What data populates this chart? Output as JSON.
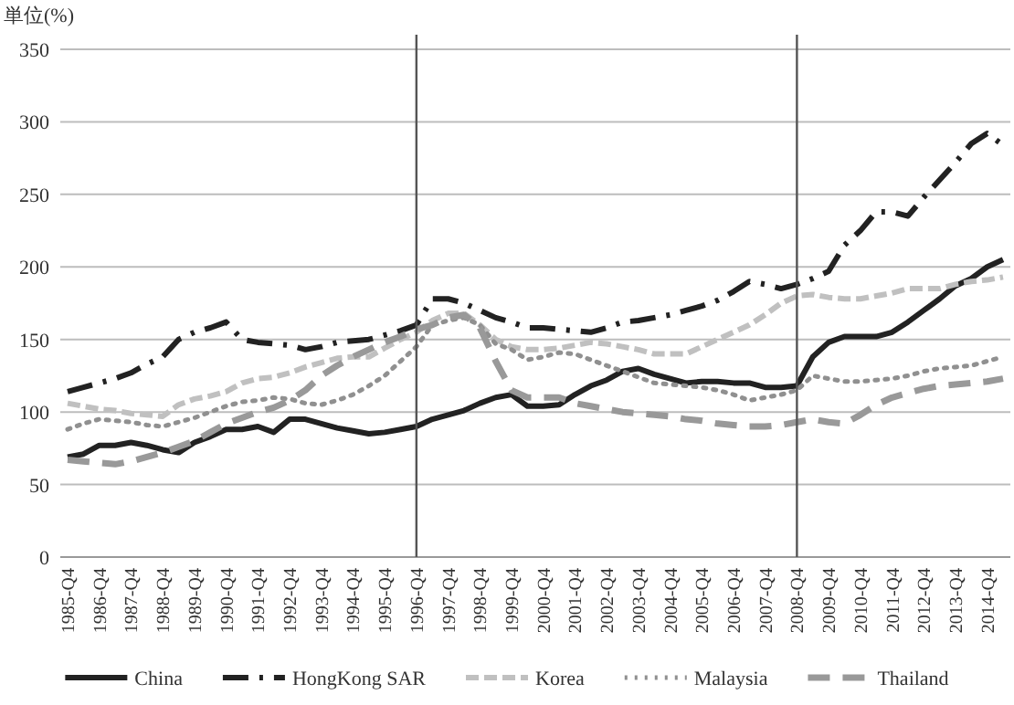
{
  "chart_data": {
    "type": "line",
    "ylabel": "単位(%)",
    "ylim": [
      0,
      350
    ],
    "yticks": [
      0,
      50,
      100,
      150,
      200,
      250,
      300,
      350
    ],
    "grid": "y",
    "legend": "bottom",
    "marker": "none",
    "categories": [
      "1985-Q4",
      null,
      "1986-Q4",
      null,
      "1987-Q4",
      null,
      "1988-Q4",
      null,
      "1989-Q4",
      null,
      "1990-Q4",
      null,
      "1991-Q4",
      null,
      "1992-Q4",
      null,
      "1993-Q4",
      null,
      "1994-Q4",
      null,
      "1995-Q4",
      null,
      "1996-Q4",
      null,
      "1997-Q4",
      null,
      "1998-Q4",
      null,
      "1999-Q4",
      null,
      "2000-Q4",
      null,
      "2001-Q4",
      null,
      "2002-Q4",
      null,
      "2003-Q4",
      null,
      "2004-Q4",
      null,
      "2005-Q4",
      null,
      "2006-Q4",
      null,
      "2007-Q4",
      null,
      "2008-Q4",
      null,
      "2009-Q4",
      null,
      "2010-Q4",
      null,
      "2011-Q4",
      null,
      "2012-Q4",
      null,
      "2013-Q4",
      null,
      "2014-Q4",
      null
    ],
    "ref_lines": [
      {
        "axis": "x",
        "value": "1996-Q4",
        "color": "#555555"
      },
      {
        "axis": "x",
        "value": "2008-Q4",
        "color": "#555555"
      }
    ],
    "series": [
      {
        "name": "China",
        "color": "#222222",
        "line_style": "solid",
        "values": [
          69,
          71,
          77,
          77,
          79,
          77,
          74,
          72,
          79,
          83,
          88,
          88,
          90,
          86,
          95,
          95,
          92,
          89,
          87,
          85,
          86,
          88,
          90,
          95,
          98,
          101,
          106,
          110,
          112,
          104,
          104,
          105,
          112,
          118,
          122,
          128,
          130,
          126,
          123,
          120,
          121,
          121,
          120,
          120,
          117,
          117,
          118,
          138,
          148,
          152,
          152,
          152,
          155,
          162,
          170,
          178,
          187,
          192,
          200,
          205
        ]
      },
      {
        "name": "HongKong SAR",
        "color": "#222222",
        "line_style": "dashdot",
        "values": [
          114,
          117,
          120,
          123,
          127,
          133,
          138,
          150,
          155,
          158,
          162,
          150,
          148,
          147,
          146,
          143,
          145,
          148,
          149,
          150,
          153,
          156,
          160,
          178,
          178,
          175,
          170,
          165,
          162,
          158,
          158,
          157,
          156,
          155,
          158,
          162,
          163,
          165,
          167,
          170,
          173,
          177,
          183,
          190,
          188,
          185,
          188,
          192,
          197,
          215,
          225,
          238,
          238,
          235,
          248,
          260,
          272,
          285,
          292,
          284
        ]
      },
      {
        "name": "Korea",
        "color": "#c0c0c0",
        "line_style": "dashed",
        "values": [
          106,
          104,
          102,
          101,
          99,
          98,
          97,
          105,
          109,
          111,
          114,
          120,
          123,
          124,
          127,
          131,
          134,
          137,
          138,
          138,
          144,
          150,
          155,
          163,
          168,
          168,
          160,
          150,
          145,
          143,
          143,
          144,
          146,
          148,
          147,
          145,
          143,
          140,
          140,
          140,
          145,
          150,
          155,
          160,
          167,
          175,
          180,
          181,
          179,
          178,
          178,
          180,
          182,
          185,
          185,
          185,
          188,
          190,
          191,
          193
        ]
      },
      {
        "name": "Malaysia",
        "color": "#909090",
        "line_style": "dotted",
        "values": [
          88,
          92,
          95,
          94,
          93,
          91,
          90,
          93,
          96,
          100,
          104,
          107,
          108,
          110,
          109,
          106,
          105,
          108,
          112,
          118,
          125,
          135,
          145,
          160,
          163,
          165,
          160,
          147,
          143,
          136,
          138,
          141,
          140,
          136,
          132,
          128,
          124,
          120,
          119,
          118,
          117,
          115,
          112,
          108,
          110,
          112,
          115,
          125,
          123,
          121,
          121,
          122,
          123,
          125,
          128,
          130,
          131,
          132,
          135,
          138
        ]
      },
      {
        "name": "Thailand",
        "color": "#999999",
        "line_style": "longdash",
        "values": [
          67,
          66,
          65,
          64,
          66,
          69,
          72,
          76,
          80,
          86,
          92,
          96,
          100,
          103,
          108,
          115,
          125,
          132,
          138,
          143,
          148,
          152,
          157,
          160,
          165,
          167,
          158,
          135,
          115,
          110,
          110,
          110,
          106,
          104,
          102,
          100,
          99,
          98,
          97,
          95,
          94,
          92,
          91,
          90,
          90,
          91,
          93,
          95,
          93,
          92,
          98,
          105,
          110,
          113,
          116,
          118,
          119,
          120,
          121,
          123
        ]
      }
    ]
  }
}
